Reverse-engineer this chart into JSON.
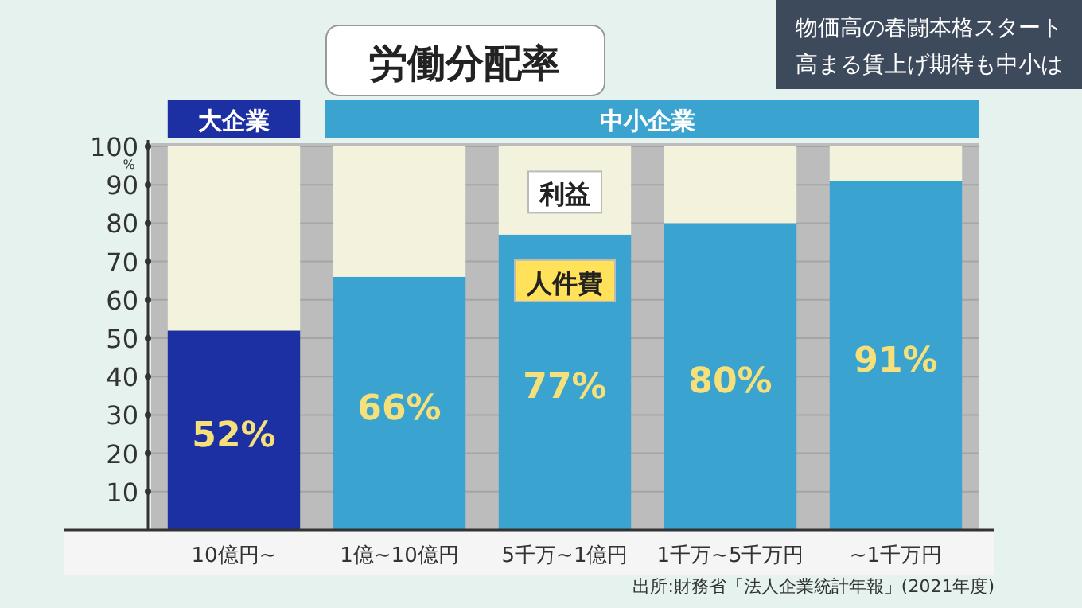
{
  "chart_data": {
    "type": "bar",
    "stacked": true,
    "title": "労働分配率",
    "ylabel": "%",
    "categories": [
      "10億円~",
      "1億~10億円",
      "5千万~1億円",
      "1千万~5千万円",
      "~1千万円"
    ],
    "series": [
      {
        "name": "人件費",
        "colors": [
          "#1c2fa3",
          "#3aa3cf",
          "#3aa3cf",
          "#3aa3cf",
          "#3aa3cf"
        ],
        "values": [
          52,
          66,
          77,
          80,
          91
        ],
        "value_labels": [
          "52%",
          "66%",
          "77%",
          "80%",
          "91%"
        ]
      },
      {
        "name": "利益",
        "color": "#f3f2dd",
        "values": [
          48,
          34,
          23,
          20,
          9
        ]
      }
    ],
    "ylim": [
      0,
      100
    ],
    "yticks": [
      10,
      20,
      30,
      40,
      50,
      60,
      70,
      80,
      90,
      100
    ],
    "grid": "y",
    "annotations": [
      "大企業",
      "中小企業",
      "物価高の春闘本格スタート",
      "高まる賃上げ期待も中小は",
      "出所:財務省「法人企業統計年報」(2021年度)"
    ]
  }
}
